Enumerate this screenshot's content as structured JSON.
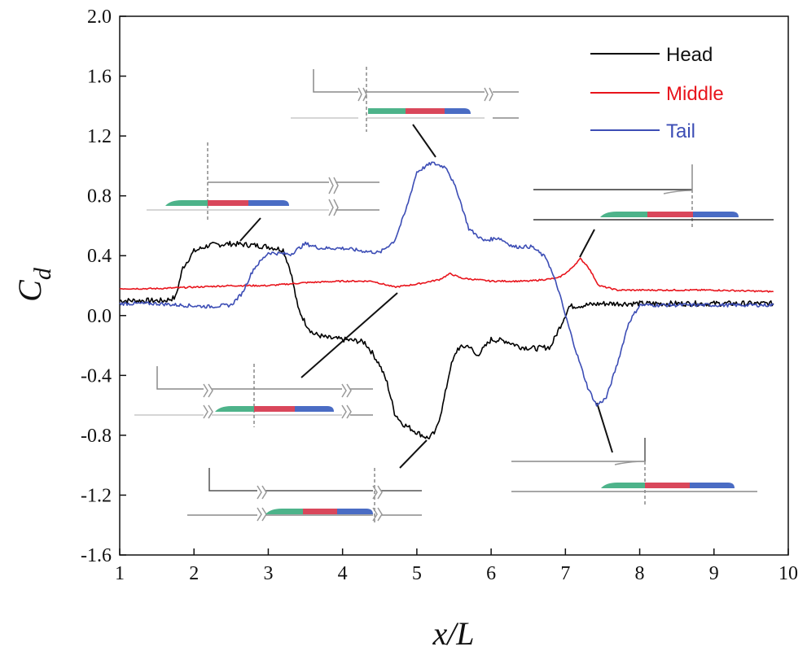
{
  "chart_data": {
    "type": "line",
    "xlabel": "x/L",
    "ylabel": "C",
    "ylabel_sub": "d",
    "xlim": [
      1,
      10
    ],
    "ylim": [
      -1.6,
      2.0
    ],
    "x_ticks": [
      1,
      2,
      3,
      4,
      5,
      6,
      7,
      8,
      9,
      10
    ],
    "x_tick_labels": [
      "1",
      "2",
      "3",
      "4",
      "5",
      "6",
      "7",
      "8",
      "9",
      "10"
    ],
    "y_ticks": [
      -1.6,
      -1.2,
      -0.8,
      -0.4,
      0.0,
      0.4,
      0.8,
      1.2,
      1.6,
      2.0
    ],
    "y_tick_labels": [
      "-1.6",
      "-1.2",
      "-0.8",
      "-0.4",
      "0.0",
      "0.4",
      "0.8",
      "1.2",
      "1.6",
      "2.0"
    ],
    "legend_position": "top-right",
    "series": [
      {
        "name": "Head",
        "color": "#000000",
        "points": [
          [
            1.0,
            0.1
          ],
          [
            1.3,
            0.1
          ],
          [
            1.6,
            0.1
          ],
          [
            1.75,
            0.12
          ],
          [
            1.85,
            0.32
          ],
          [
            2.0,
            0.43
          ],
          [
            2.2,
            0.47
          ],
          [
            2.5,
            0.48
          ],
          [
            2.8,
            0.47
          ],
          [
            3.0,
            0.46
          ],
          [
            3.2,
            0.44
          ],
          [
            3.3,
            0.3
          ],
          [
            3.4,
            0.05
          ],
          [
            3.5,
            -0.05
          ],
          [
            3.6,
            -0.12
          ],
          [
            3.8,
            -0.15
          ],
          [
            4.0,
            -0.16
          ],
          [
            4.2,
            -0.17
          ],
          [
            4.3,
            -0.18
          ],
          [
            4.4,
            -0.25
          ],
          [
            4.5,
            -0.33
          ],
          [
            4.6,
            -0.45
          ],
          [
            4.7,
            -0.65
          ],
          [
            4.8,
            -0.72
          ],
          [
            5.0,
            -0.78
          ],
          [
            5.15,
            -0.82
          ],
          [
            5.25,
            -0.78
          ],
          [
            5.35,
            -0.6
          ],
          [
            5.45,
            -0.35
          ],
          [
            5.55,
            -0.22
          ],
          [
            5.7,
            -0.2
          ],
          [
            5.8,
            -0.27
          ],
          [
            5.9,
            -0.22
          ],
          [
            6.0,
            -0.16
          ],
          [
            6.2,
            -0.17
          ],
          [
            6.4,
            -0.21
          ],
          [
            6.6,
            -0.22
          ],
          [
            6.8,
            -0.21
          ],
          [
            6.95,
            -0.05
          ],
          [
            7.05,
            0.06
          ],
          [
            7.5,
            0.08
          ],
          [
            8.0,
            0.08
          ],
          [
            9.0,
            0.08
          ],
          [
            9.8,
            0.08
          ]
        ]
      },
      {
        "name": "Middle",
        "color": "#e8141c",
        "points": [
          [
            1.0,
            0.18
          ],
          [
            1.5,
            0.18
          ],
          [
            2.0,
            0.19
          ],
          [
            2.5,
            0.2
          ],
          [
            3.0,
            0.2
          ],
          [
            3.5,
            0.22
          ],
          [
            4.0,
            0.23
          ],
          [
            4.4,
            0.23
          ],
          [
            4.7,
            0.19
          ],
          [
            5.0,
            0.21
          ],
          [
            5.3,
            0.24
          ],
          [
            5.45,
            0.28
          ],
          [
            5.6,
            0.25
          ],
          [
            6.0,
            0.23
          ],
          [
            6.5,
            0.23
          ],
          [
            6.9,
            0.25
          ],
          [
            7.05,
            0.3
          ],
          [
            7.2,
            0.38
          ],
          [
            7.3,
            0.33
          ],
          [
            7.45,
            0.2
          ],
          [
            7.7,
            0.17
          ],
          [
            8.0,
            0.17
          ],
          [
            9.0,
            0.17
          ],
          [
            9.8,
            0.16
          ]
        ]
      },
      {
        "name": "Tail",
        "color": "#3c4db5",
        "points": [
          [
            1.0,
            0.08
          ],
          [
            1.5,
            0.08
          ],
          [
            1.8,
            0.07
          ],
          [
            2.2,
            0.06
          ],
          [
            2.5,
            0.07
          ],
          [
            2.65,
            0.15
          ],
          [
            2.8,
            0.31
          ],
          [
            3.0,
            0.42
          ],
          [
            3.3,
            0.41
          ],
          [
            3.5,
            0.48
          ],
          [
            3.7,
            0.45
          ],
          [
            4.0,
            0.45
          ],
          [
            4.3,
            0.43
          ],
          [
            4.5,
            0.42
          ],
          [
            4.7,
            0.5
          ],
          [
            4.85,
            0.7
          ],
          [
            5.0,
            0.96
          ],
          [
            5.2,
            1.02
          ],
          [
            5.4,
            0.99
          ],
          [
            5.55,
            0.82
          ],
          [
            5.7,
            0.58
          ],
          [
            5.9,
            0.5
          ],
          [
            6.1,
            0.52
          ],
          [
            6.3,
            0.46
          ],
          [
            6.55,
            0.46
          ],
          [
            6.75,
            0.38
          ],
          [
            6.9,
            0.18
          ],
          [
            7.0,
            0.0
          ],
          [
            7.15,
            -0.25
          ],
          [
            7.3,
            -0.48
          ],
          [
            7.42,
            -0.6
          ],
          [
            7.55,
            -0.55
          ],
          [
            7.7,
            -0.32
          ],
          [
            7.85,
            -0.05
          ],
          [
            8.0,
            0.07
          ],
          [
            8.5,
            0.07
          ],
          [
            9.0,
            0.07
          ],
          [
            9.8,
            0.07
          ]
        ]
      }
    ]
  },
  "colors": {
    "head": "#000000",
    "middle": "#e8141c",
    "tail": "#3c4db5",
    "car_green": "#4db38a",
    "car_red": "#d9475b",
    "car_blue": "#4a6cc4"
  }
}
